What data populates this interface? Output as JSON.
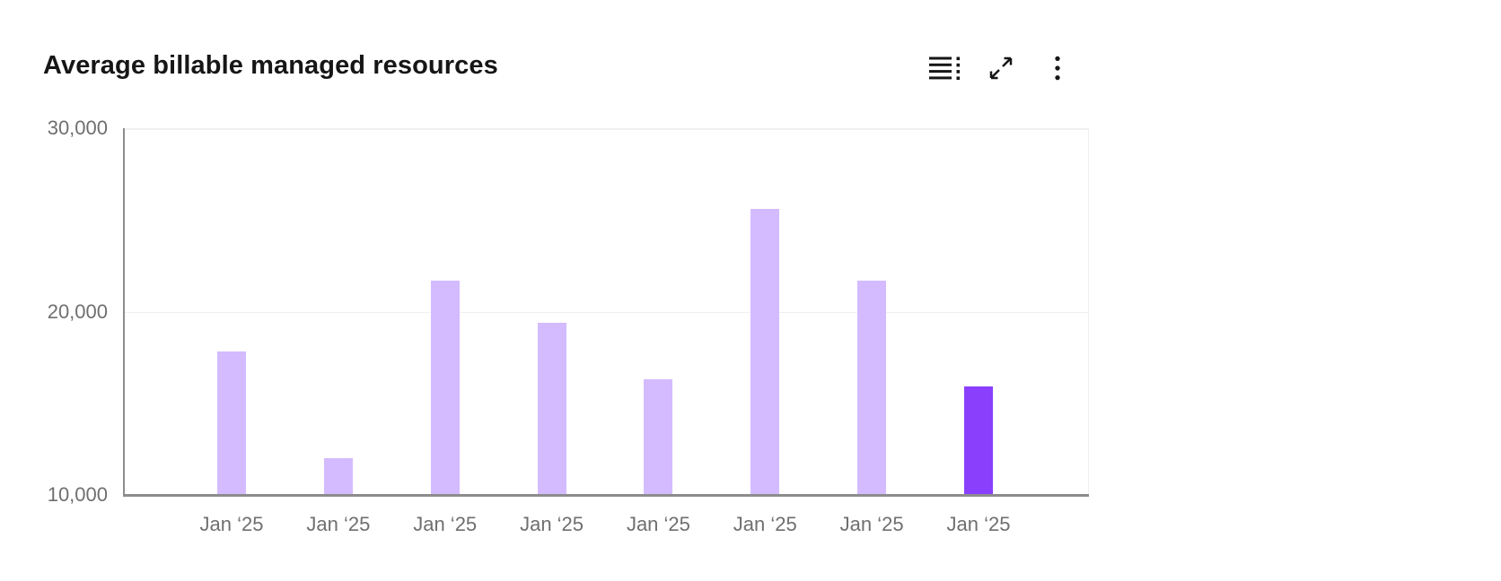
{
  "header": {
    "toolbar": {
      "icons": [
        "data-table-icon",
        "expand-icon",
        "overflow-menu-icon"
      ]
    }
  },
  "colors": {
    "bar_default": "#d4bbff",
    "bar_highlight": "#8a3ffc",
    "axis_line": "#8d8d8d",
    "grid_line": "#f0f0f0",
    "tick_text": "#6f6f6f",
    "title_text": "#161616",
    "icon_color": "#161616",
    "background": "#ffffff"
  },
  "chart_data": {
    "type": "bar",
    "title": "Average billable managed resources",
    "categories": [
      "Jan ‘25",
      "Jan ‘25",
      "Jan ‘25",
      "Jan ‘25",
      "Jan ‘25",
      "Jan ‘25",
      "Jan ‘25",
      "Jan ‘25"
    ],
    "values": [
      17800,
      12000,
      21700,
      19400,
      16300,
      25600,
      21700,
      15900
    ],
    "highlighted_index": 7,
    "xlabel": "",
    "ylabel": "",
    "ylim": [
      10000,
      30000
    ],
    "yticks": [
      10000,
      20000,
      30000
    ],
    "ytick_labels": [
      "10,000",
      "20,000",
      "30,000"
    ],
    "grid": "horizontal gridlines at y ticks, plot backdrop white",
    "legend": "none"
  }
}
